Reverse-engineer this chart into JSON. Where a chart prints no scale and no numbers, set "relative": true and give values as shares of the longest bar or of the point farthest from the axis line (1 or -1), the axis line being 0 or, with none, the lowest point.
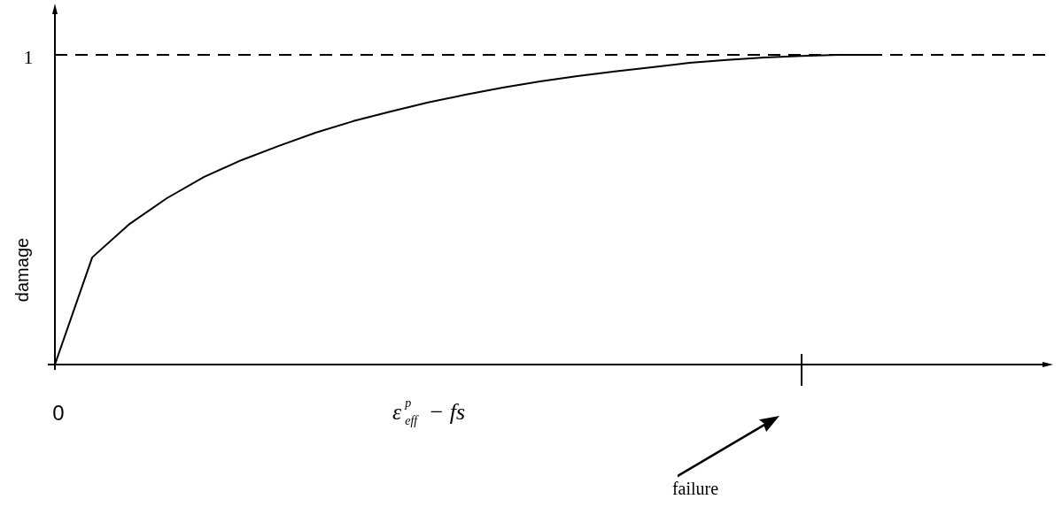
{
  "chart_data": {
    "type": "line",
    "relative": true,
    "xlabel": "ε$^{p}$$_{eff}$ − fs",
    "ylabel": "damage",
    "categories": [
      null,
      null,
      null,
      null,
      null,
      null,
      null,
      null,
      null,
      null,
      null,
      null,
      null,
      null,
      null,
      null,
      null,
      null,
      null,
      null,
      null,
      null,
      null
    ],
    "series": [
      {
        "color": "#000000",
        "values": [
          0,
          0.346,
          0.454,
          0.537,
          0.606,
          0.66,
          0.706,
          0.749,
          0.786,
          0.817,
          0.846,
          0.871,
          0.894,
          0.914,
          0.931,
          0.946,
          0.96,
          0.974,
          0.983,
          0.991,
          0.996,
          1,
          1
        ]
      }
    ],
    "ref_lines": [
      {
        "axis": "y",
        "value": 1,
        "label": "1",
        "line_style": "dashed",
        "color": "#000000"
      }
    ],
    "annotations": [
      "0",
      "failure"
    ],
    "legend": false,
    "grid": false,
    "marker": "none",
    "line_style": "solid"
  }
}
